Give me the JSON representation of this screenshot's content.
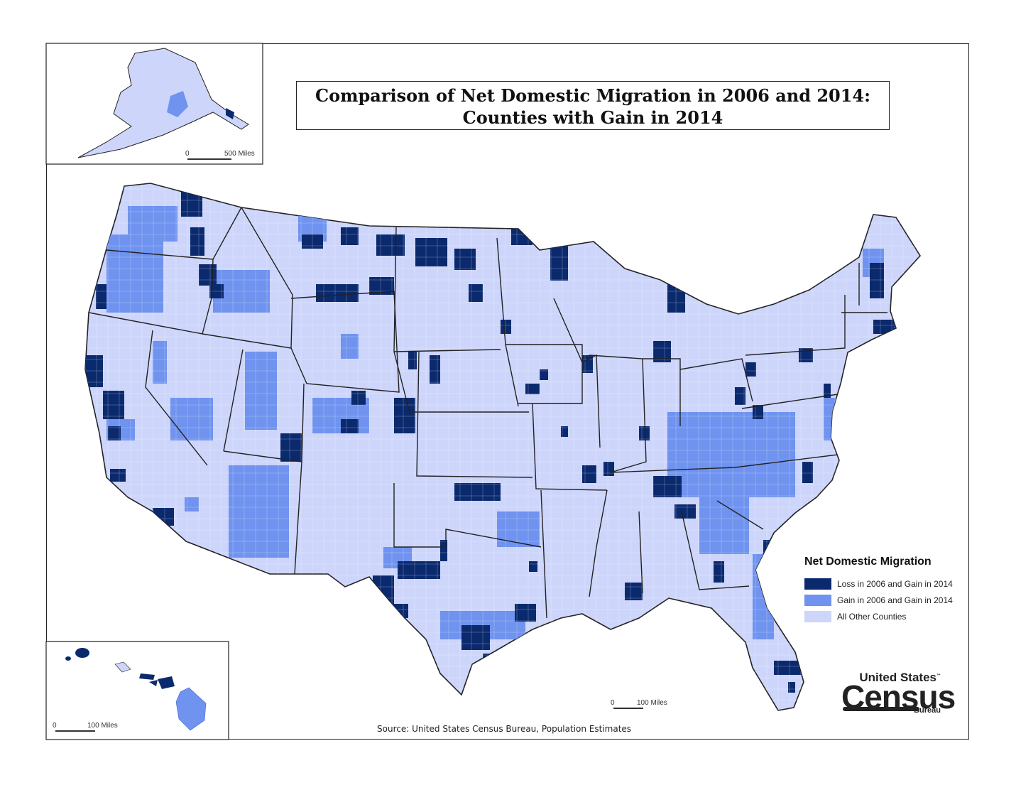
{
  "title": {
    "line1": "Comparison of Net Domestic Migration in 2006 and 2014:",
    "line2": "Counties with Gain in 2014"
  },
  "legend": {
    "title": "Net Domestic Migration",
    "items": [
      {
        "label": "Loss in 2006 and Gain in 2014",
        "color": "#0b2a6e"
      },
      {
        "label": "Gain in 2006 and Gain in 2014",
        "color": "#6f93ef"
      },
      {
        "label": "All Other Counties",
        "color": "#cdd5fb"
      }
    ]
  },
  "scales": {
    "alaska": {
      "start": "0",
      "end": "500 Miles"
    },
    "hawaii": {
      "start": "0",
      "end": "100 Miles"
    },
    "main": {
      "start": "0",
      "end": "100 Miles"
    }
  },
  "source": "Source: United States Census Bureau, Population Estimates",
  "logo": {
    "top": "United States",
    "tm": "™",
    "main": "Census",
    "bottom": "Bureau"
  },
  "colors": {
    "dark": "#0b2a6e",
    "medium": "#6f93ef",
    "light": "#cdd5fb",
    "border": "#222222"
  }
}
